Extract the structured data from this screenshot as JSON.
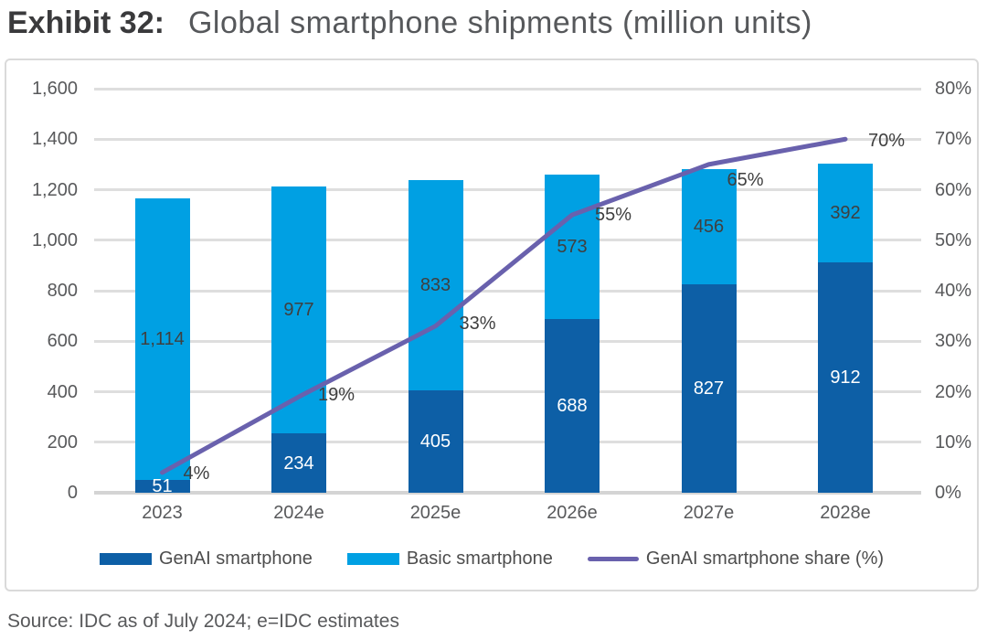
{
  "page": {
    "title_prefix": "Exhibit 32:",
    "title_main": "Global smartphone shipments (million units)",
    "source": "Source: IDC as of July 2024; e=IDC estimates"
  },
  "colors": {
    "genai_bar": "#0d5fa6",
    "basic_bar": "#00a0e3",
    "share_line": "#6961ad",
    "grid": "#dedede",
    "frame": "#dadada",
    "axis_text": "#58595b",
    "bar_label_dark": "#3f3f3f",
    "bar_label_light": "#ffffff"
  },
  "chart_data": {
    "type": "bar",
    "subtype": "stacked-bar-with-line-combo",
    "title": "Global smartphone shipments (million units)",
    "categories": [
      "2023",
      "2024e",
      "2025e",
      "2026e",
      "2027e",
      "2028e"
    ],
    "series": [
      {
        "name": "GenAI smartphone",
        "type": "bar",
        "axis": "left",
        "color": "#0d5fa6",
        "label_color": "#ffffff",
        "values": [
          51,
          234,
          405,
          688,
          827,
          912
        ],
        "value_labels": [
          "51",
          "234",
          "405",
          "688",
          "827",
          "912"
        ]
      },
      {
        "name": "Basic smartphone",
        "type": "bar",
        "axis": "left",
        "color": "#00a0e3",
        "label_color": "#3f3f3f",
        "values": [
          1114,
          977,
          833,
          573,
          456,
          392
        ],
        "value_labels": [
          "1,114",
          "977",
          "833",
          "573",
          "456",
          "392"
        ]
      },
      {
        "name": "GenAI smartphone share (%)",
        "type": "line",
        "axis": "right",
        "color": "#6961ad",
        "label_color": "#3f3f3f",
        "values": [
          4,
          19,
          33,
          55,
          65,
          70
        ],
        "value_labels": [
          "4%",
          "19%",
          "33%",
          "55%",
          "65%",
          "70%"
        ]
      }
    ],
    "stacked": true,
    "grid": true,
    "legend_position": "bottom",
    "left_axis": {
      "min": 0,
      "max": 1600,
      "step": 200,
      "tick_labels": [
        "0",
        "200",
        "400",
        "600",
        "800",
        "1,000",
        "1,200",
        "1,400",
        "1,600"
      ]
    },
    "right_axis": {
      "min": 0,
      "max": 80,
      "step": 10,
      "tick_labels": [
        "0%",
        "10%",
        "20%",
        "30%",
        "40%",
        "50%",
        "60%",
        "70%",
        "80%"
      ]
    }
  }
}
